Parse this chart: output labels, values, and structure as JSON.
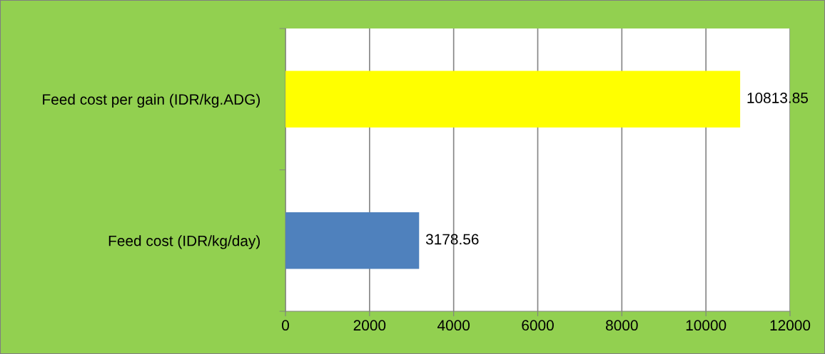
{
  "chart_data": {
    "type": "bar",
    "orientation": "horizontal",
    "categories": [
      "Feed cost per gain (IDR/kg.ADG)",
      "Feed cost (IDR/kg/day)"
    ],
    "values": [
      10813.85,
      3178.56
    ],
    "colors": [
      "#ffff00",
      "#4f81bd"
    ],
    "xlim": [
      0,
      12000
    ],
    "xticks": [
      0,
      2000,
      4000,
      6000,
      8000,
      10000,
      12000
    ],
    "grid": "x",
    "data_labels": true,
    "legend": false
  }
}
